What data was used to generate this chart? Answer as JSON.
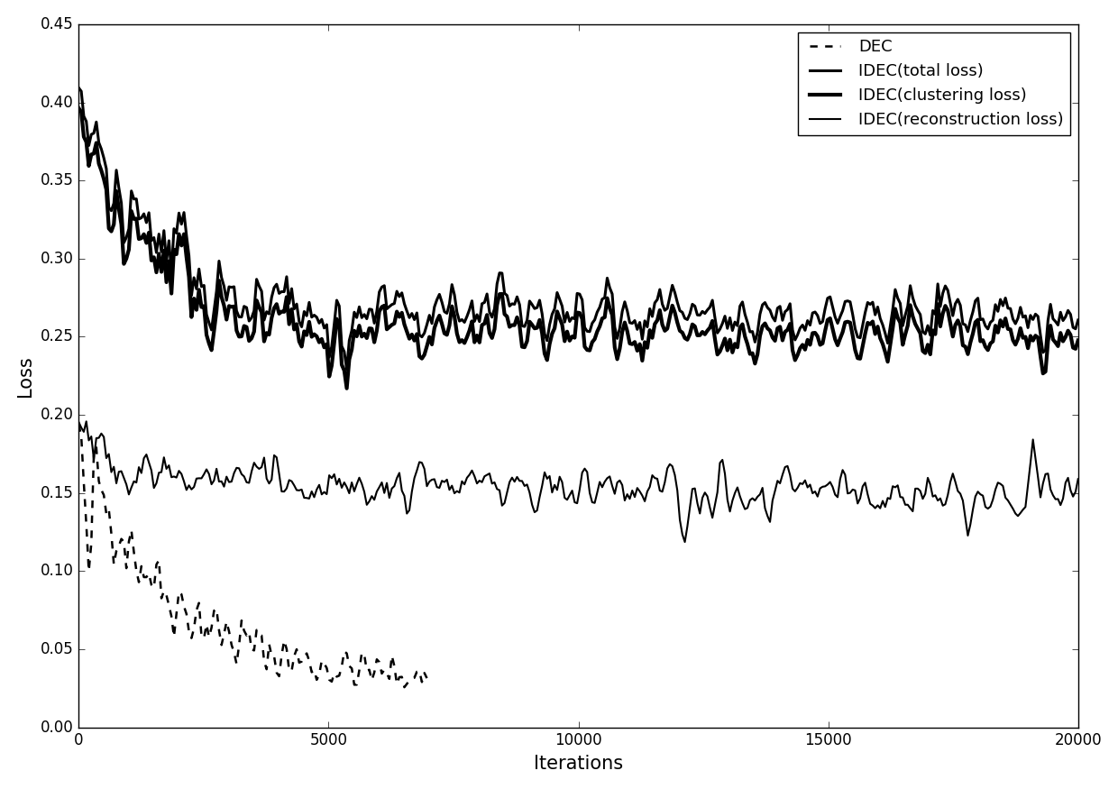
{
  "title": "",
  "xlabel": "Iterations",
  "ylabel": "Loss",
  "xlim": [
    0,
    20000
  ],
  "ylim": [
    0.0,
    0.45
  ],
  "yticks": [
    0.0,
    0.05,
    0.1,
    0.15,
    0.2,
    0.25,
    0.3,
    0.35,
    0.4,
    0.45
  ],
  "xticks": [
    0,
    5000,
    10000,
    15000,
    20000
  ],
  "figsize": [
    12.4,
    8.75
  ],
  "dpi": 100,
  "seed": 42,
  "n_points": 400,
  "line_color": "#000000",
  "background_color": "#ffffff"
}
